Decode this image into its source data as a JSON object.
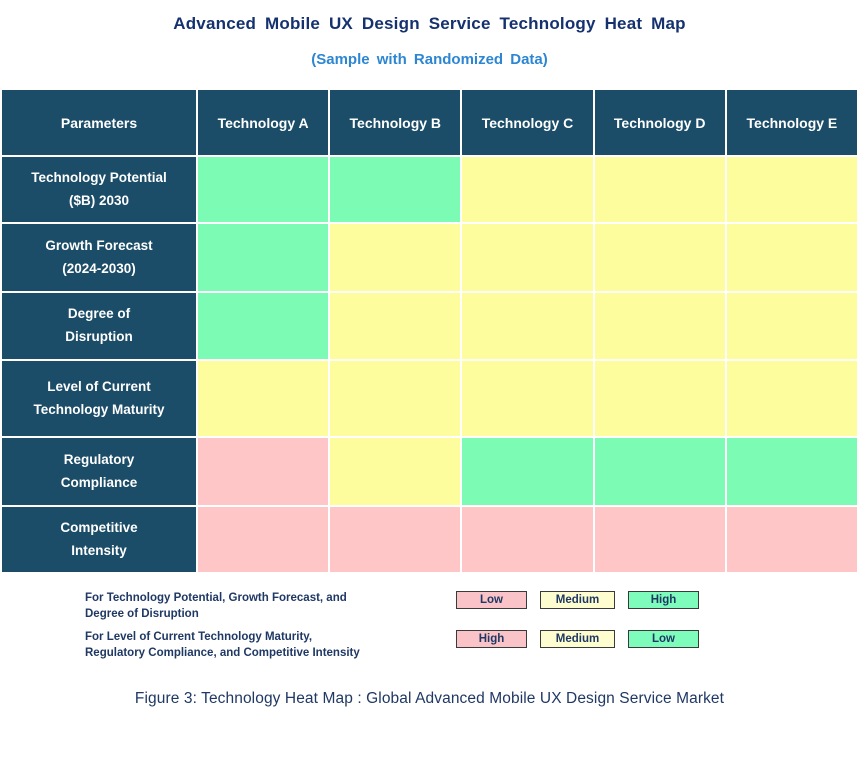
{
  "title": "Advanced Mobile UX Design Service Technology Heat Map",
  "subtitle": "(Sample with Randomized Data)",
  "caption": "Figure 3: Technology Heat Map :  Global Advanced Mobile UX Design Service Market",
  "colors": {
    "header_bg": "#1B4C68",
    "title_navy": "#15316E",
    "subtitle_blue": "#2C86D2",
    "text_navy": "#1F3864",
    "cell_high": "#7BFBB4",
    "cell_medium": "#FDFD9E",
    "cell_low": "#FFC6C7",
    "legend_box_green": "#7EFCBC",
    "legend_box_yellow": "#FDFDCF",
    "legend_box_pink": "#F9C3C7"
  },
  "table": {
    "header": [
      "Parameters",
      "Technology A",
      "Technology B",
      "Technology C",
      "Technology D",
      "Technology E"
    ],
    "rows": [
      {
        "label": "Technology Potential ($B) 2030",
        "label_lines": [
          "Technology Potential",
          "($B) 2030"
        ],
        "cells": [
          "high",
          "high",
          "medium",
          "medium",
          "medium"
        ]
      },
      {
        "label": "Growth Forecast (2024-2030)",
        "label_lines": [
          "Growth Forecast",
          "(2024-2030)"
        ],
        "cells": [
          "high",
          "medium",
          "medium",
          "medium",
          "medium"
        ]
      },
      {
        "label": "Degree of Disruption",
        "label_lines": [
          "Degree of",
          "Disruption"
        ],
        "cells": [
          "high",
          "medium",
          "medium",
          "medium",
          "medium"
        ]
      },
      {
        "label": "Level of Current Technology Maturity",
        "label_lines": [
          "Level of Current",
          "Technology Maturity"
        ],
        "cells": [
          "medium",
          "medium",
          "medium",
          "medium",
          "medium"
        ]
      },
      {
        "label": "Regulatory Compliance",
        "label_lines": [
          "Regulatory",
          "Compliance"
        ],
        "cells": [
          "low",
          "medium",
          "high",
          "high",
          "high"
        ]
      },
      {
        "label": "Competitive Intensity",
        "label_lines": [
          "Competitive",
          "Intensity"
        ],
        "cells": [
          "low",
          "low",
          "low",
          "low",
          "low"
        ]
      }
    ]
  },
  "legend": {
    "row1": {
      "line1": "For Technology Potential, Growth Forecast, and",
      "line2": "Degree of Disruption",
      "boxes": [
        {
          "label": "Low",
          "color_key": "legend_box_pink"
        },
        {
          "label": "Medium",
          "color_key": "legend_box_yellow"
        },
        {
          "label": "High",
          "color_key": "legend_box_green"
        }
      ]
    },
    "row2": {
      "line1": "For Level of Current Technology Maturity,",
      "line2": "Regulatory Compliance, and Competitive Intensity",
      "boxes": [
        {
          "label": "High",
          "color_key": "legend_box_pink"
        },
        {
          "label": "Medium",
          "color_key": "legend_box_yellow"
        },
        {
          "label": "Low",
          "color_key": "legend_box_green"
        }
      ]
    }
  },
  "chart_data": {
    "type": "heatmap",
    "title": "Advanced Mobile UX Design Service Technology Heat Map",
    "subtitle": "(Sample with Randomized Data)",
    "columns": [
      "Technology A",
      "Technology B",
      "Technology C",
      "Technology D",
      "Technology E"
    ],
    "rows": [
      "Technology Potential ($B) 2030",
      "Growth Forecast (2024-2030)",
      "Degree of Disruption",
      "Level of Current Technology Maturity",
      "Regulatory Compliance",
      "Competitive Intensity"
    ],
    "cell_colors": [
      [
        "green",
        "green",
        "yellow",
        "yellow",
        "yellow"
      ],
      [
        "green",
        "yellow",
        "yellow",
        "yellow",
        "yellow"
      ],
      [
        "green",
        "yellow",
        "yellow",
        "yellow",
        "yellow"
      ],
      [
        "yellow",
        "yellow",
        "yellow",
        "yellow",
        "yellow"
      ],
      [
        "pink",
        "yellow",
        "green",
        "green",
        "green"
      ],
      [
        "pink",
        "pink",
        "pink",
        "pink",
        "pink"
      ]
    ],
    "values": [
      [
        "High",
        "High",
        "Medium",
        "Medium",
        "Medium"
      ],
      [
        "High",
        "Medium",
        "Medium",
        "Medium",
        "Medium"
      ],
      [
        "High",
        "Medium",
        "Medium",
        "Medium",
        "Medium"
      ],
      [
        "Medium",
        "Medium",
        "Medium",
        "Medium",
        "Medium"
      ],
      [
        "High",
        "Medium",
        "Low",
        "Low",
        "Low"
      ],
      [
        "High",
        "High",
        "High",
        "High",
        "High"
      ]
    ],
    "legend": [
      {
        "applies_to": "Technology Potential, Growth Forecast, and Degree of Disruption",
        "mapping": {
          "pink": "Low",
          "yellow": "Medium",
          "green": "High"
        }
      },
      {
        "applies_to": "Level of Current Technology Maturity, Regulatory Compliance, and Competitive Intensity",
        "mapping": {
          "pink": "High",
          "yellow": "Medium",
          "green": "Low"
        }
      }
    ],
    "caption": "Figure 3: Technology Heat Map :  Global Advanced Mobile UX Design Service Market"
  }
}
